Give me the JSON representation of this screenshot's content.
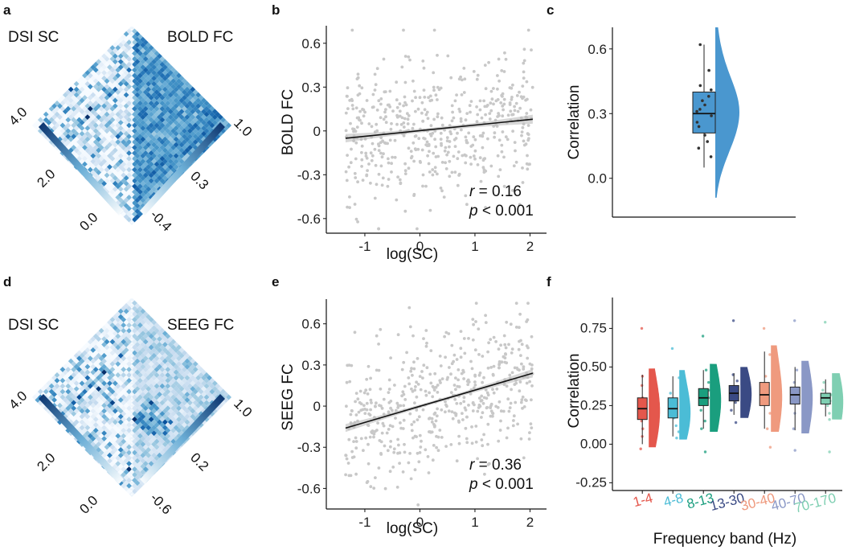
{
  "panel_labels": [
    "a",
    "b",
    "c",
    "d",
    "e",
    "f"
  ],
  "chart_data": [
    {
      "id": "a",
      "type": "heatmap",
      "title_left": "DSI SC",
      "title_right": "BOLD FC",
      "left_colorbar": {
        "ticks": [
          "4.0",
          "2.0",
          "0.0"
        ],
        "range": [
          0.0,
          4.0
        ]
      },
      "right_colorbar": {
        "ticks": [
          "1.0",
          "0.3",
          "-0.4"
        ],
        "range": [
          -0.4,
          1.0
        ]
      },
      "colors": {
        "low": "#f7fbff",
        "high": "#08306b"
      },
      "seed": 11
    },
    {
      "id": "b",
      "type": "scatter",
      "xlabel": "log(SC)",
      "ylabel": "BOLD FC",
      "xlim": [
        -1.7,
        2.3
      ],
      "ylim": [
        -0.7,
        0.72
      ],
      "xticks": [
        -1,
        0,
        1,
        2
      ],
      "xtick_labels": [
        "-1",
        "0",
        "1",
        "2"
      ],
      "yticks": [
        -0.6,
        -0.3,
        0,
        0.3,
        0.6
      ],
      "ytick_labels": [
        "-0.6",
        "-0.3",
        "0",
        "0.3",
        "0.6"
      ],
      "fit": {
        "x": [
          -1.35,
          2.05
        ],
        "y": [
          -0.05,
          0.08
        ]
      },
      "stats": {
        "r_label": "r",
        "r_value": " = 0.16",
        "p_label": "p",
        "p_value": " < 0.001"
      },
      "n_points": 520,
      "point_color": "#c8c8c8",
      "seed": 3
    },
    {
      "id": "c",
      "type": "box",
      "ylabel": "Correlation",
      "ylim": [
        -0.18,
        0.7
      ],
      "yticks": [
        0.0,
        0.3,
        0.6
      ],
      "ytick_labels": [
        "0.0",
        "0.3",
        "0.6"
      ],
      "box": {
        "min": 0.05,
        "q1": 0.21,
        "median": 0.3,
        "q3": 0.4,
        "max": 0.62
      },
      "points": [
        0.62,
        0.5,
        0.43,
        0.41,
        0.38,
        0.36,
        0.34,
        0.32,
        0.31,
        0.29,
        0.26,
        0.24,
        0.2,
        0.17,
        0.14,
        0.1
      ],
      "color": "#4a97cf"
    },
    {
      "id": "d",
      "type": "heatmap",
      "title_left": "DSI SC",
      "title_right": "SEEG FC",
      "left_colorbar": {
        "ticks": [
          "4.0",
          "2.0",
          "0.0"
        ],
        "range": [
          0.0,
          4.0
        ]
      },
      "right_colorbar": {
        "ticks": [
          "1.0",
          "0.2",
          "-0.6"
        ],
        "range": [
          -0.6,
          1.0
        ]
      },
      "colors": {
        "low": "#f7fbff",
        "high": "#08306b"
      },
      "seed": 29
    },
    {
      "id": "e",
      "type": "scatter",
      "xlabel": "log(SC)",
      "ylabel": "SEEG FC",
      "xlim": [
        -1.7,
        2.3
      ],
      "ylim": [
        -0.75,
        0.78
      ],
      "xticks": [
        -1,
        0,
        1,
        2
      ],
      "xtick_labels": [
        "-1",
        "0",
        "1",
        "2"
      ],
      "yticks": [
        -0.6,
        -0.3,
        0,
        0.3,
        0.6
      ],
      "ytick_labels": [
        "-0.6",
        "-0.3",
        "0",
        "0.3",
        "0.6"
      ],
      "fit": {
        "x": [
          -1.35,
          2.05
        ],
        "y": [
          -0.16,
          0.24
        ]
      },
      "stats": {
        "r_label": "r",
        "r_value": " = 0.36",
        "p_label": "p",
        "p_value": " < 0.001"
      },
      "n_points": 520,
      "point_color": "#c8c8c8",
      "seed": 7
    },
    {
      "id": "f",
      "type": "box",
      "xlabel": "Frequency band (Hz)",
      "ylabel": "Correlation",
      "ylim": [
        -0.3,
        0.95
      ],
      "yticks": [
        -0.25,
        0.0,
        0.25,
        0.5,
        0.75
      ],
      "ytick_labels": [
        "-0.25",
        "0.00",
        "0.25",
        "0.50",
        "0.75"
      ],
      "categories": [
        "1-4",
        "4-8",
        "8-13",
        "13-30",
        "30-40",
        "40-70",
        "70-170"
      ],
      "series": [
        {
          "name": "1-4",
          "color": "#e4574c",
          "box": {
            "min": 0.0,
            "q1": 0.16,
            "median": 0.23,
            "q3": 0.3,
            "max": 0.45
          },
          "points": [
            0.75,
            0.44,
            0.38,
            0.3,
            0.27,
            0.24,
            0.2,
            0.15,
            0.1,
            0.05,
            -0.03
          ]
        },
        {
          "name": "4-8",
          "color": "#4bbcd6",
          "box": {
            "min": 0.05,
            "q1": 0.17,
            "median": 0.23,
            "q3": 0.3,
            "max": 0.44
          },
          "points": [
            0.62,
            0.43,
            0.33,
            0.28,
            0.25,
            0.21,
            0.17,
            0.12,
            0.08,
            0.04
          ]
        },
        {
          "name": "8-13",
          "color": "#1a9e7e",
          "box": {
            "min": 0.1,
            "q1": 0.25,
            "median": 0.3,
            "q3": 0.36,
            "max": 0.48
          },
          "points": [
            0.7,
            0.48,
            0.4,
            0.35,
            0.32,
            0.3,
            0.27,
            0.22,
            0.15,
            0.1,
            -0.05
          ]
        },
        {
          "name": "13-30",
          "color": "#3a4a84",
          "box": {
            "min": 0.19,
            "q1": 0.28,
            "median": 0.33,
            "q3": 0.38,
            "max": 0.46
          },
          "points": [
            0.8,
            0.45,
            0.41,
            0.37,
            0.35,
            0.33,
            0.3,
            0.27,
            0.22,
            0.14
          ]
        },
        {
          "name": "30-40",
          "color": "#ef9a7e",
          "box": {
            "min": 0.1,
            "q1": 0.25,
            "median": 0.32,
            "q3": 0.4,
            "max": 0.6
          },
          "points": [
            0.75,
            0.58,
            0.44,
            0.38,
            0.34,
            0.3,
            0.26,
            0.2,
            0.1,
            -0.02
          ]
        },
        {
          "name": "40-70",
          "color": "#8a98c6",
          "box": {
            "min": 0.09,
            "q1": 0.26,
            "median": 0.32,
            "q3": 0.37,
            "max": 0.5
          },
          "points": [
            0.8,
            0.48,
            0.4,
            0.36,
            0.33,
            0.3,
            0.27,
            0.2,
            0.1,
            -0.04
          ]
        },
        {
          "name": "70-170",
          "color": "#7fcfb2",
          "box": {
            "min": 0.18,
            "q1": 0.26,
            "median": 0.3,
            "q3": 0.33,
            "max": 0.42
          },
          "points": [
            0.79,
            0.4,
            0.35,
            0.32,
            0.3,
            0.28,
            0.25,
            0.2,
            0.16,
            -0.05
          ]
        }
      ]
    }
  ]
}
